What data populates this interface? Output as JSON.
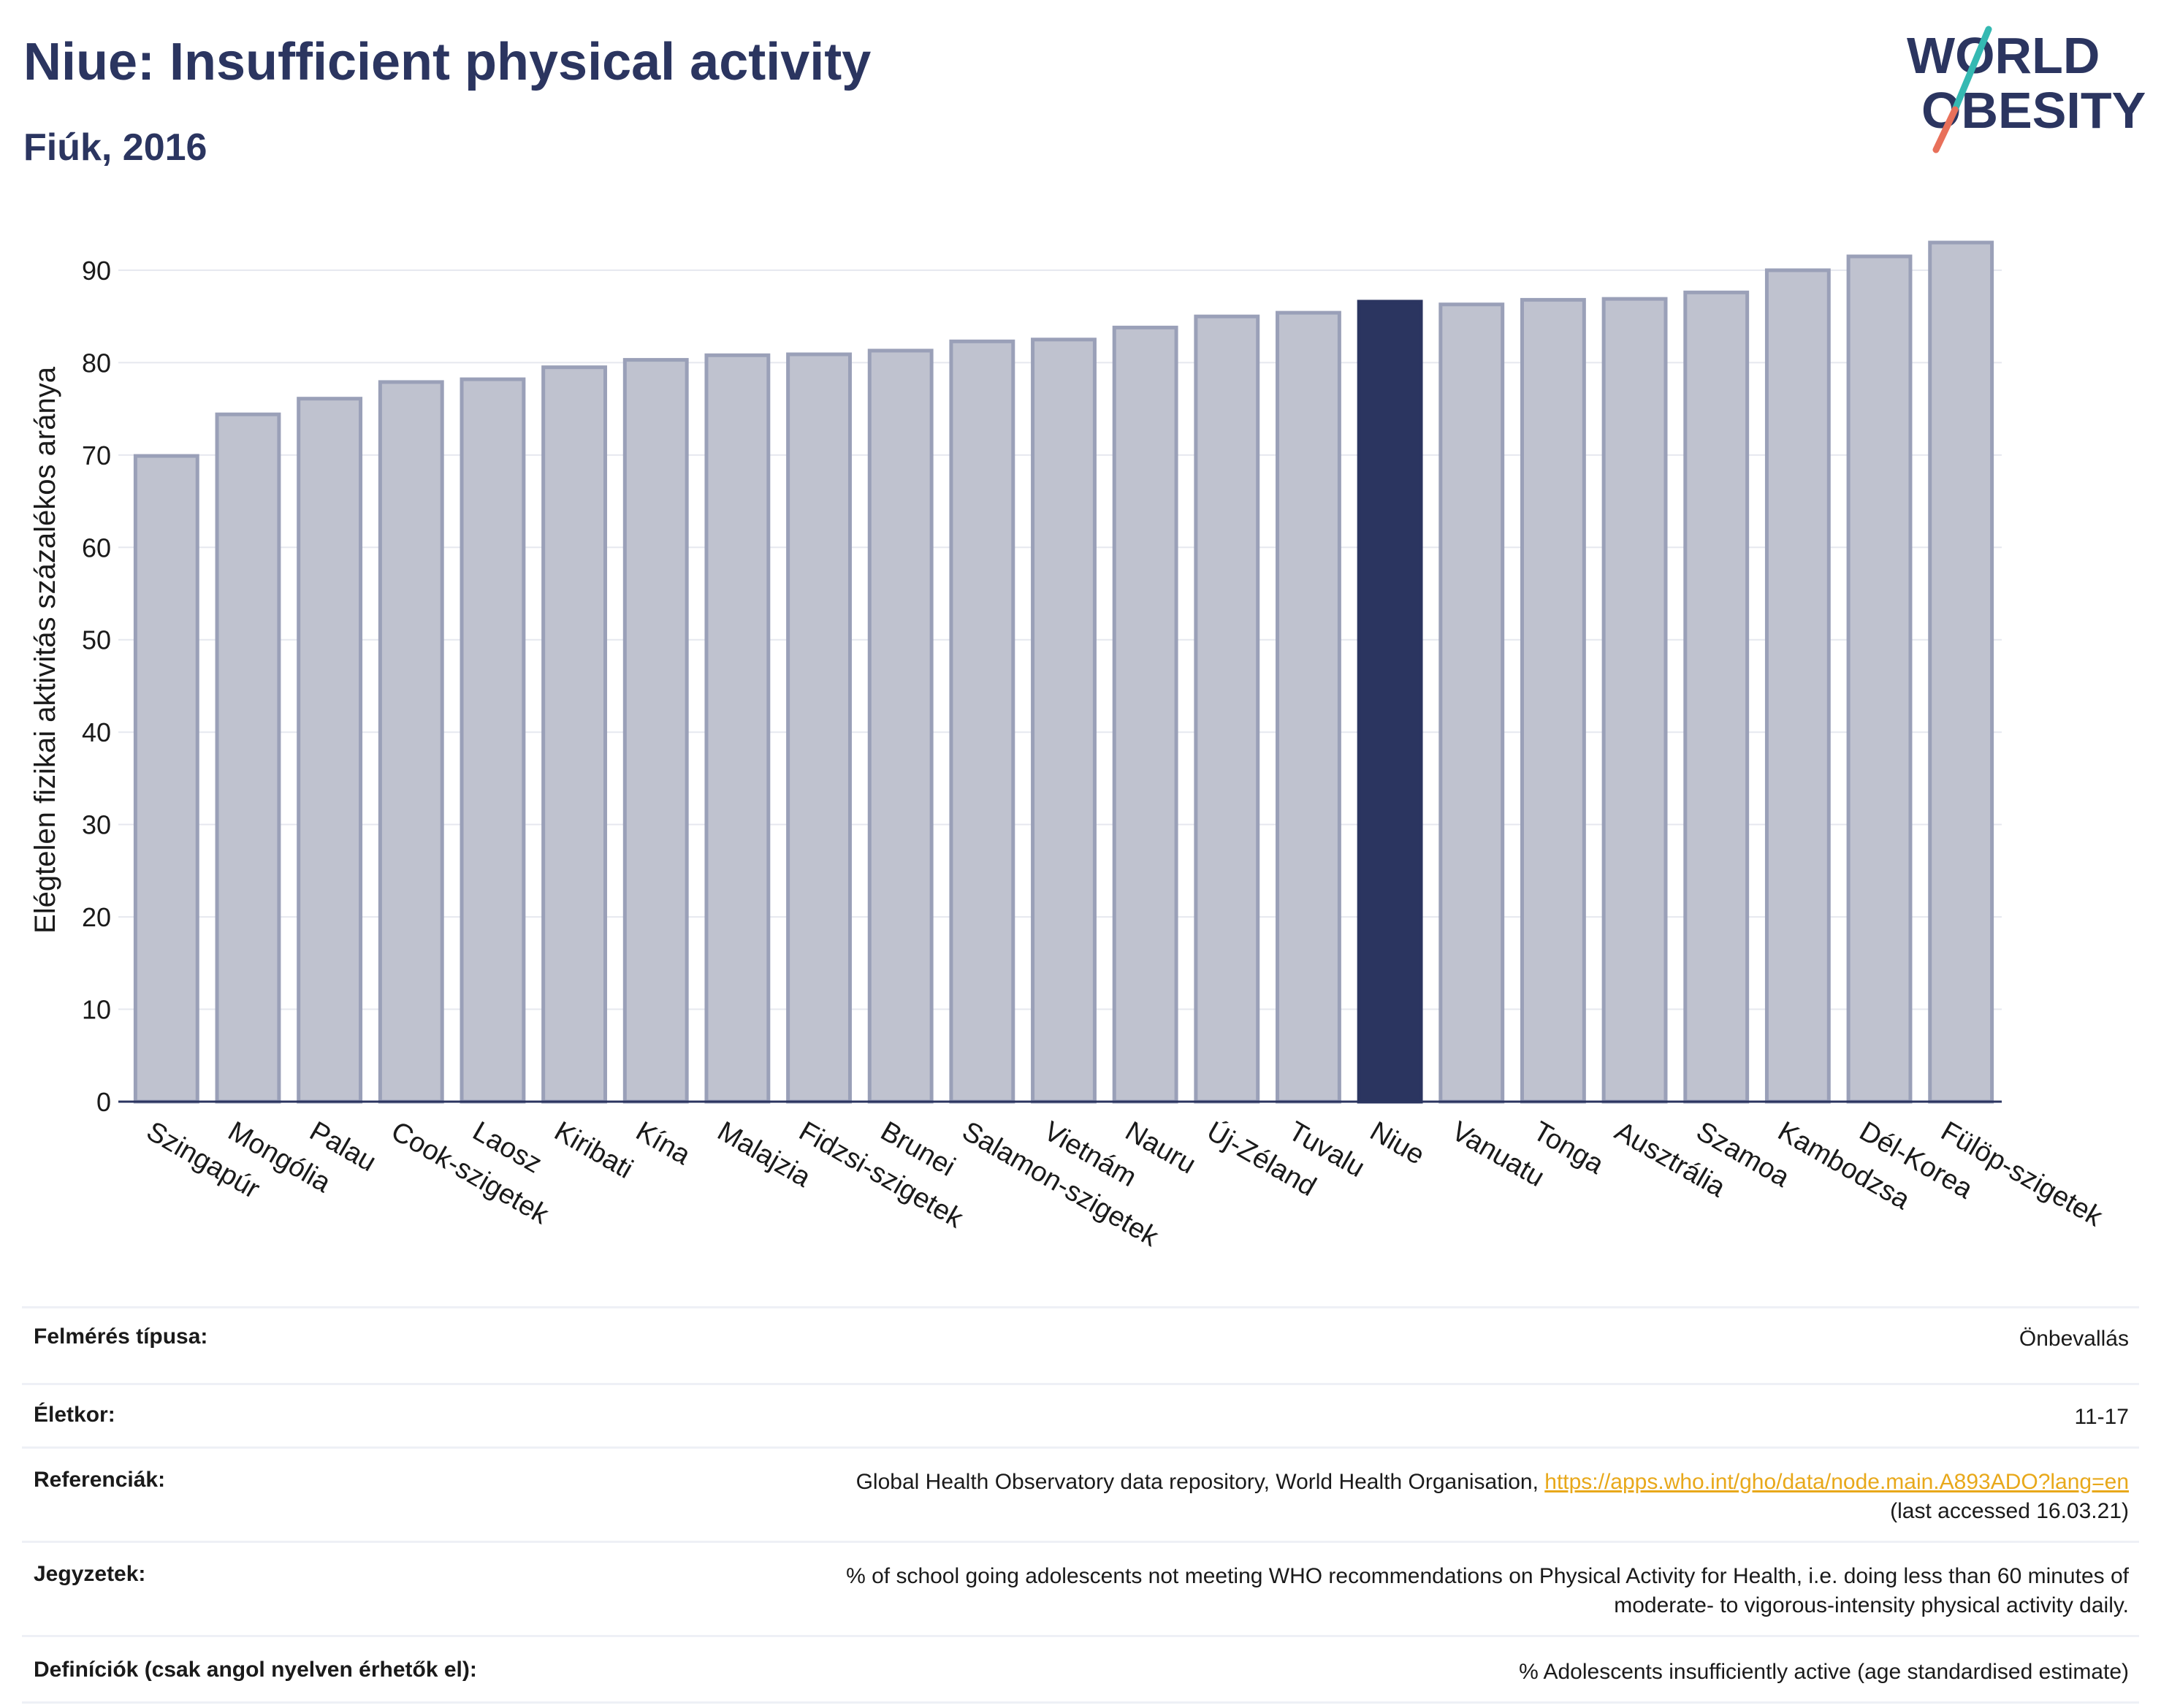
{
  "header": {
    "title": "Niue: Insufficient physical activity",
    "subtitle": "Fiúk, 2016"
  },
  "logo": {
    "line1": "WORLD",
    "line2": "OBESITY",
    "colors": {
      "text": "#2b3560",
      "slash_teal": "#35b9b2",
      "slash_coral": "#e8705a"
    }
  },
  "chart_data": {
    "type": "bar",
    "ylabel": "Elégtelen fizikai aktivitás százalékos aránya",
    "ylim": [
      0,
      93
    ],
    "yticks": [
      0,
      10,
      20,
      30,
      40,
      50,
      60,
      70,
      80,
      90
    ],
    "categories": [
      "Szingapúr",
      "Mongólia",
      "Palau",
      "Cook-szigetek",
      "Laosz",
      "Kiribati",
      "Kína",
      "Malajzia",
      "Fidzsi-szigetek",
      "Brunei",
      "Salamon-szigetek",
      "Vietnám",
      "Nauru",
      "Új-Zéland",
      "Tuvalu",
      "Niue",
      "Vanuatu",
      "Tonga",
      "Ausztrália",
      "Szamoa",
      "Kambodzsa",
      "Dél-Korea",
      "Fülöp-szigetek"
    ],
    "values": [
      69.9,
      74.4,
      76.1,
      77.9,
      78.2,
      79.5,
      80.3,
      80.8,
      80.9,
      81.3,
      82.3,
      82.5,
      83.8,
      85.0,
      85.4,
      86.6,
      86.3,
      86.8,
      86.9,
      87.6,
      90.0,
      91.5,
      93.0
    ],
    "highlight": "Niue",
    "grid": true,
    "colors": {
      "bar": "#bfc2cf",
      "bar_border": "#9aa0b8",
      "highlight": "#2b3560"
    }
  },
  "meta": {
    "survey_label": "Felmérés típusa:",
    "survey_value": "Önbevallás",
    "age_label": "Életkor:",
    "age_value": "11-17",
    "ref_label": "Referenciák:",
    "ref_text": "Global Health Observatory data repository, World Health Organisation, ",
    "ref_link": "https://apps.who.int/gho/data/node.main.A893ADO?lang=en",
    "ref_accessed": "(last accessed 16.03.21)",
    "notes_label": "Jegyzetek:",
    "notes_line1": "% of school going adolescents not meeting WHO recommendations on Physical Activity for Health, i.e. doing less than 60 minutes of",
    "notes_line2": "moderate- to vigorous-intensity physical activity daily.",
    "def_label": "Definíciók (csak angol nyelven érhetők el):",
    "def_value": "% Adolescents insufficiently active (age standardised estimate)"
  }
}
